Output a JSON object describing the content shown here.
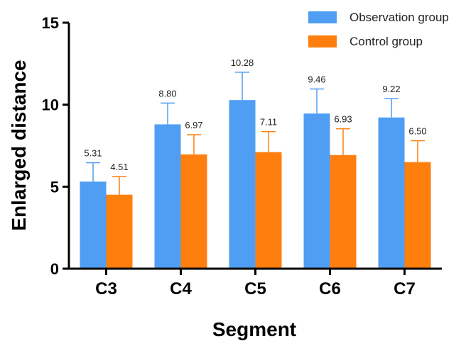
{
  "chart_data": {
    "type": "bar",
    "title": "",
    "xlabel": "Segment",
    "ylabel": "Enlarged distance",
    "ylim": [
      0,
      15
    ],
    "yticks": [
      0,
      5,
      10,
      15
    ],
    "grid": false,
    "legend_position": "top-right",
    "categories": [
      "C3",
      "C4",
      "C5",
      "C6",
      "C7"
    ],
    "series": [
      {
        "name": "Observation group",
        "color": "#4F9EF3",
        "values": [
          5.31,
          8.8,
          10.28,
          9.46,
          9.22
        ],
        "value_labels": [
          "5.31",
          "8.80",
          "10.28",
          "9.46",
          "9.22"
        ],
        "error": [
          1.15,
          1.3,
          1.7,
          1.5,
          1.15
        ]
      },
      {
        "name": "Control group",
        "color": "#FF7F0E",
        "values": [
          4.51,
          6.97,
          7.11,
          6.93,
          6.5
        ],
        "value_labels": [
          "4.51",
          "6.97",
          "7.11",
          "6.93",
          "6.50"
        ],
        "error": [
          1.1,
          1.2,
          1.25,
          1.6,
          1.3
        ]
      }
    ]
  }
}
